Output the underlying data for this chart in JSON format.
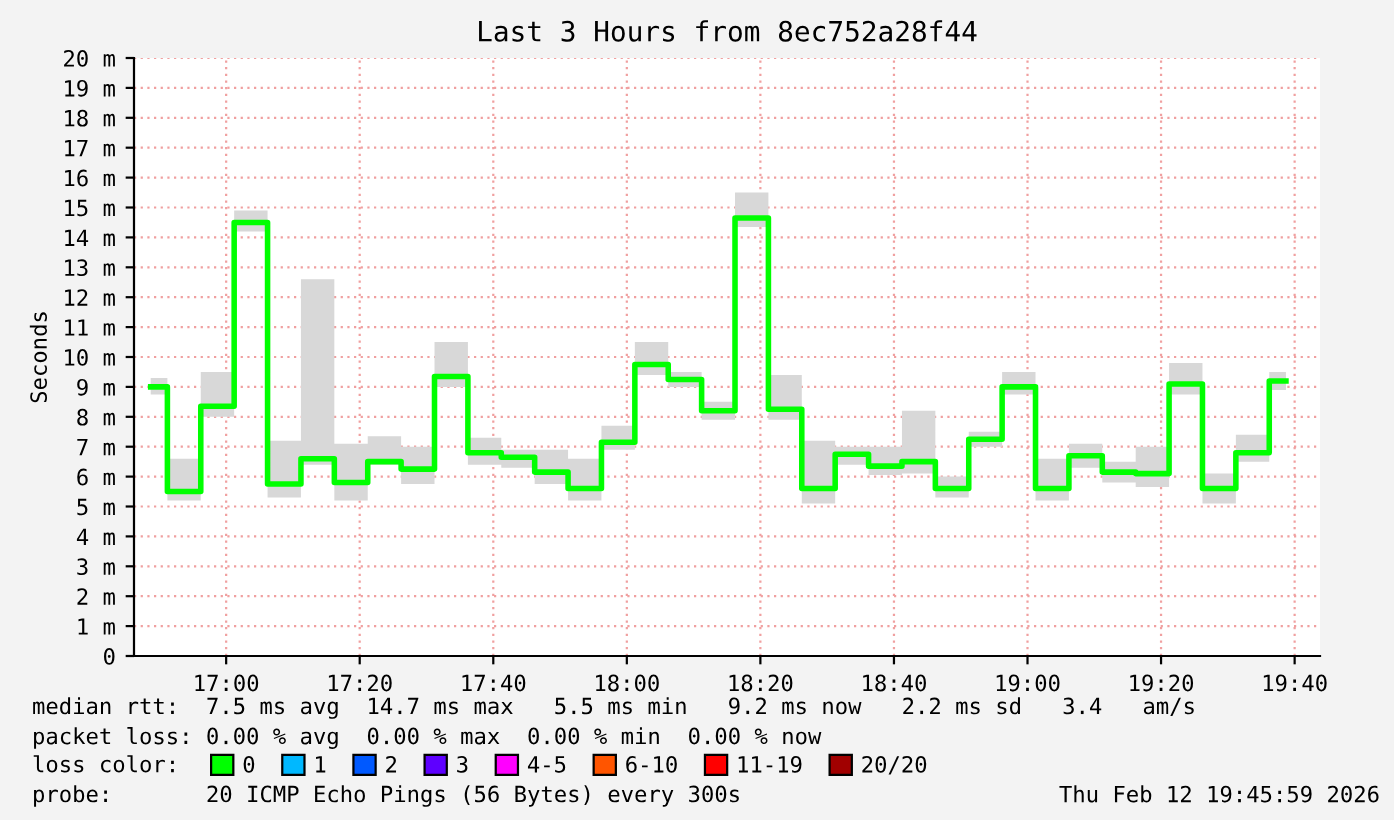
{
  "chart_data": {
    "type": "step",
    "title": "Last 3 Hours from 8ec752a28f44",
    "ylabel": "Seconds",
    "legend_title": "loss color:",
    "x": [
      16.8117,
      16.895,
      16.9783,
      17.0617,
      17.145,
      17.2283,
      17.3117,
      17.395,
      17.4783,
      17.5617,
      17.645,
      17.7283,
      17.8117,
      17.895,
      17.9783,
      18.0617,
      18.145,
      18.2283,
      18.3117,
      18.395,
      18.4783,
      18.5617,
      18.645,
      18.7283,
      18.8117,
      18.895,
      18.9783,
      19.0617,
      19.145,
      19.2283,
      19.3117,
      19.395,
      19.4783,
      19.5617,
      19.645
    ],
    "series": [
      {
        "name": "0",
        "color": "#00ff00",
        "values": [
          9.0,
          5.5,
          8.35,
          14.5,
          5.75,
          6.6,
          5.8,
          6.5,
          6.25,
          9.35,
          6.8,
          6.65,
          6.15,
          5.6,
          7.15,
          9.75,
          9.25,
          8.2,
          14.65,
          8.25,
          5.6,
          6.75,
          6.35,
          6.5,
          5.6,
          7.25,
          9.0,
          5.6,
          6.7,
          6.15,
          6.1,
          9.1,
          5.6,
          6.8,
          9.2
        ],
        "lower": [
          8.75,
          5.2,
          8.0,
          14.2,
          5.3,
          6.4,
          5.2,
          6.4,
          5.75,
          9.0,
          6.4,
          6.3,
          5.75,
          5.2,
          6.9,
          9.4,
          9.0,
          7.9,
          14.35,
          7.9,
          5.1,
          6.4,
          6.05,
          6.1,
          5.3,
          7.0,
          8.75,
          5.2,
          6.3,
          5.8,
          5.65,
          8.75,
          5.1,
          6.5,
          8.9
        ],
        "upper": [
          9.3,
          6.6,
          9.5,
          14.9,
          7.2,
          12.6,
          7.1,
          7.35,
          7.0,
          10.5,
          7.3,
          6.9,
          6.9,
          6.6,
          7.7,
          10.5,
          9.5,
          8.5,
          15.5,
          9.4,
          7.2,
          7.0,
          7.0,
          8.2,
          6.0,
          7.5,
          9.5,
          6.6,
          7.1,
          6.5,
          7.0,
          9.8,
          6.1,
          7.4,
          9.5
        ]
      },
      {
        "name": "1",
        "color": "#00b8ff",
        "values": [
          null,
          null,
          null,
          null,
          null,
          null,
          null,
          null,
          null,
          null,
          null,
          null,
          null,
          null,
          null,
          null,
          null,
          null,
          null,
          null,
          null,
          null,
          null,
          null,
          null,
          null,
          null,
          null,
          null,
          null,
          null,
          null,
          null,
          null,
          null
        ]
      },
      {
        "name": "2",
        "color": "#0059ff",
        "values": [
          null,
          null,
          null,
          null,
          null,
          null,
          null,
          null,
          null,
          null,
          null,
          null,
          null,
          null,
          null,
          null,
          null,
          null,
          null,
          null,
          null,
          null,
          null,
          null,
          null,
          null,
          null,
          null,
          null,
          null,
          null,
          null,
          null,
          null,
          null
        ]
      },
      {
        "name": "3",
        "color": "#5e00ff",
        "values": [
          null,
          null,
          null,
          null,
          null,
          null,
          null,
          null,
          null,
          null,
          null,
          null,
          null,
          null,
          null,
          null,
          null,
          null,
          null,
          null,
          null,
          null,
          null,
          null,
          null,
          null,
          null,
          null,
          null,
          null,
          null,
          null,
          null,
          null,
          null
        ]
      },
      {
        "name": "4-5",
        "color": "#ff00ff",
        "values": [
          null,
          null,
          null,
          null,
          null,
          null,
          null,
          null,
          null,
          null,
          null,
          null,
          null,
          null,
          null,
          null,
          null,
          null,
          null,
          null,
          null,
          null,
          null,
          null,
          null,
          null,
          null,
          null,
          null,
          null,
          null,
          null,
          null,
          null,
          null
        ]
      },
      {
        "name": "6-10",
        "color": "#ff5500",
        "values": [
          null,
          null,
          null,
          null,
          null,
          null,
          null,
          null,
          null,
          null,
          null,
          null,
          null,
          null,
          null,
          null,
          null,
          null,
          null,
          null,
          null,
          null,
          null,
          null,
          null,
          null,
          null,
          null,
          null,
          null,
          null,
          null,
          null,
          null,
          null
        ]
      },
      {
        "name": "11-19",
        "color": "#ff0000",
        "values": [
          null,
          null,
          null,
          null,
          null,
          null,
          null,
          null,
          null,
          null,
          null,
          null,
          null,
          null,
          null,
          null,
          null,
          null,
          null,
          null,
          null,
          null,
          null,
          null,
          null,
          null,
          null,
          null,
          null,
          null,
          null,
          null,
          null,
          null,
          null
        ]
      },
      {
        "name": "20/20",
        "color": "#a10000",
        "values": [
          null,
          null,
          null,
          null,
          null,
          null,
          null,
          null,
          null,
          null,
          null,
          null,
          null,
          null,
          null,
          null,
          null,
          null,
          null,
          null,
          null,
          null,
          null,
          null,
          null,
          null,
          null,
          null,
          null,
          null,
          null,
          null,
          null,
          null,
          null
        ]
      }
    ],
    "xlim": [
      16.77,
      19.73
    ],
    "xticks": [
      {
        "value": 17,
        "label": "17:00"
      },
      {
        "value": 17.3333,
        "label": "17:20"
      },
      {
        "value": 17.6667,
        "label": "17:40"
      },
      {
        "value": 18,
        "label": "18:00"
      },
      {
        "value": 18.3333,
        "label": "18:20"
      },
      {
        "value": 18.6667,
        "label": "18:40"
      },
      {
        "value": 19,
        "label": "19:00"
      },
      {
        "value": 19.3333,
        "label": "19:20"
      },
      {
        "value": 19.6667,
        "label": "19:40"
      }
    ],
    "ylim": [
      0,
      20
    ],
    "yticks": [
      0,
      {
        "value": 1,
        "label": "1 m"
      },
      {
        "value": 2,
        "label": "2 m"
      },
      {
        "value": 3,
        "label": "3 m"
      },
      {
        "value": 4,
        "label": "4 m"
      },
      {
        "value": 5,
        "label": "5 m"
      },
      {
        "value": 6,
        "label": "6 m"
      },
      {
        "value": 7,
        "label": "7 m"
      },
      {
        "value": 8,
        "label": "8 m"
      },
      {
        "value": 9,
        "label": "9 m"
      },
      {
        "value": 10,
        "label": "10 m"
      },
      {
        "value": 11,
        "label": "11 m"
      },
      {
        "value": 12,
        "label": "12 m"
      },
      {
        "value": 13,
        "label": "13 m"
      },
      {
        "value": 14,
        "label": "14 m"
      },
      {
        "value": 15,
        "label": "15 m"
      },
      {
        "value": 16,
        "label": "16 m"
      },
      {
        "value": 17,
        "label": "17 m"
      },
      {
        "value": 18,
        "label": "18 m"
      },
      {
        "value": 19,
        "label": "19 m"
      },
      {
        "value": 20,
        "label": "20 m"
      }
    ],
    "grid": true,
    "legend": "bottom",
    "annotations": [
      "median rtt:  7.5 ms avg  14.7 ms max   5.5 ms min   9.2 ms now   2.2 ms sd   3.4   am/s",
      "packet loss: 0.00 % avg  0.00 % max  0.00 % min  0.00 % now",
      "probe:       20 ICMP Echo Pings (56 Bytes) every 300s",
      "Thu Feb 12 19:45:59 2026"
    ]
  }
}
